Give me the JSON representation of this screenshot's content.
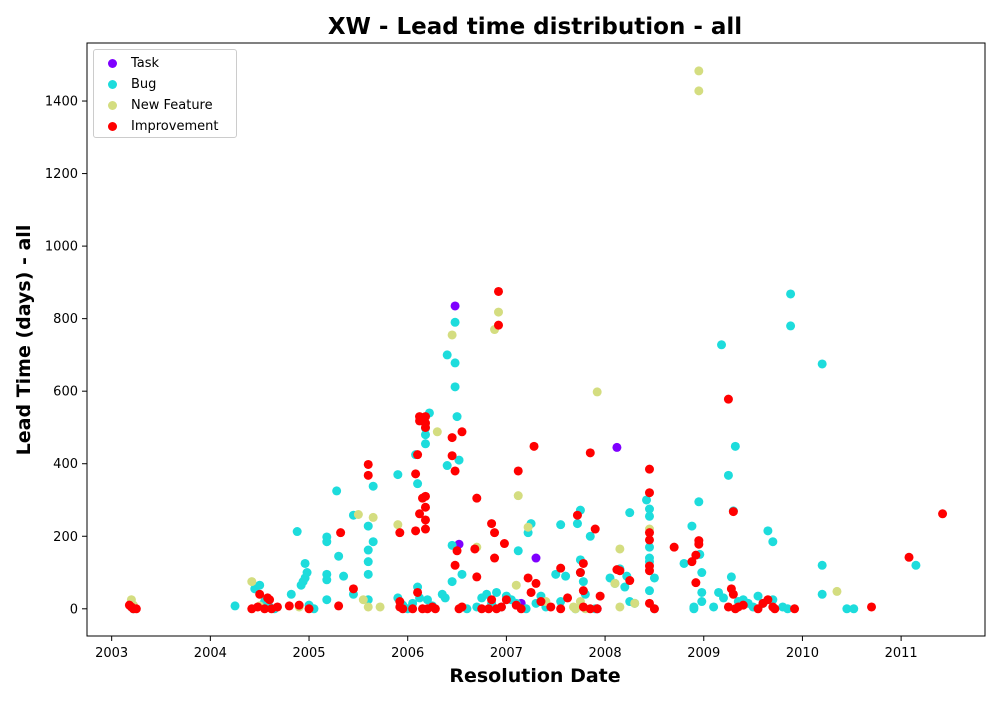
{
  "chart_data": {
    "type": "scatter",
    "title": "XW - Lead time distribution - all",
    "xlabel": "Resolution Date",
    "ylabel": "Lead Time (days) - all",
    "xlim": [
      2002.75,
      2011.85
    ],
    "ylim": [
      -75,
      1560
    ],
    "x_ticks": [
      2003,
      2004,
      2005,
      2006,
      2007,
      2008,
      2009,
      2010,
      2011
    ],
    "y_ticks": [
      0,
      200,
      400,
      600,
      800,
      1000,
      1200,
      1400
    ],
    "grid": false,
    "legend_position": "top-left",
    "series": [
      {
        "name": "Task",
        "color": "#7f00ff",
        "points": [
          [
            2006.48,
            835
          ],
          [
            2006.52,
            178
          ],
          [
            2007.3,
            140
          ],
          [
            2007.15,
            15
          ],
          [
            2008.12,
            445
          ],
          [
            2007.92,
            0
          ]
        ]
      },
      {
        "name": "Bug",
        "color": "#1ddcdc",
        "points": [
          [
            2004.25,
            8
          ],
          [
            2004.45,
            55
          ],
          [
            2004.5,
            65
          ],
          [
            2004.55,
            20
          ],
          [
            2004.6,
            5
          ],
          [
            2004.65,
            0
          ],
          [
            2004.82,
            40
          ],
          [
            2004.88,
            213
          ],
          [
            2004.92,
            65
          ],
          [
            2004.94,
            75
          ],
          [
            2004.96,
            85
          ],
          [
            2004.98,
            100
          ],
          [
            2004.96,
            125
          ],
          [
            2005.0,
            10
          ],
          [
            2005.05,
            0
          ],
          [
            2005.18,
            95
          ],
          [
            2005.18,
            80
          ],
          [
            2005.18,
            185
          ],
          [
            2005.18,
            198
          ],
          [
            2005.18,
            25
          ],
          [
            2005.28,
            325
          ],
          [
            2005.3,
            145
          ],
          [
            2005.35,
            90
          ],
          [
            2005.45,
            258
          ],
          [
            2005.45,
            40
          ],
          [
            2005.6,
            228
          ],
          [
            2005.6,
            162
          ],
          [
            2005.6,
            130
          ],
          [
            2005.6,
            95
          ],
          [
            2005.6,
            25
          ],
          [
            2005.65,
            338
          ],
          [
            2005.65,
            185
          ],
          [
            2005.9,
            370
          ],
          [
            2005.9,
            30
          ],
          [
            2005.95,
            10
          ],
          [
            2006.0,
            0
          ],
          [
            2006.05,
            15
          ],
          [
            2006.08,
            425
          ],
          [
            2006.1,
            345
          ],
          [
            2006.1,
            60
          ],
          [
            2006.12,
            30
          ],
          [
            2006.18,
            480
          ],
          [
            2006.18,
            455
          ],
          [
            2006.18,
            498
          ],
          [
            2006.2,
            25
          ],
          [
            2006.22,
            540
          ],
          [
            2006.25,
            8
          ],
          [
            2006.35,
            40
          ],
          [
            2006.38,
            30
          ],
          [
            2006.4,
            700
          ],
          [
            2006.4,
            395
          ],
          [
            2006.45,
            175
          ],
          [
            2006.45,
            75
          ],
          [
            2006.48,
            790
          ],
          [
            2006.48,
            678
          ],
          [
            2006.48,
            612
          ],
          [
            2006.5,
            530
          ],
          [
            2006.52,
            410
          ],
          [
            2006.55,
            95
          ],
          [
            2006.6,
            0
          ],
          [
            2006.7,
            5
          ],
          [
            2006.75,
            30
          ],
          [
            2006.8,
            40
          ],
          [
            2006.85,
            15
          ],
          [
            2006.9,
            45
          ],
          [
            2006.95,
            5
          ],
          [
            2007.0,
            35
          ],
          [
            2007.05,
            25
          ],
          [
            2007.1,
            15
          ],
          [
            2007.12,
            160
          ],
          [
            2007.2,
            0
          ],
          [
            2007.22,
            210
          ],
          [
            2007.25,
            235
          ],
          [
            2007.3,
            15
          ],
          [
            2007.35,
            35
          ],
          [
            2007.4,
            5
          ],
          [
            2007.5,
            95
          ],
          [
            2007.55,
            232
          ],
          [
            2007.55,
            20
          ],
          [
            2007.6,
            90
          ],
          [
            2007.7,
            0
          ],
          [
            2007.72,
            235
          ],
          [
            2007.75,
            272
          ],
          [
            2007.75,
            135
          ],
          [
            2007.75,
            100
          ],
          [
            2007.78,
            75
          ],
          [
            2007.8,
            40
          ],
          [
            2007.85,
            200
          ],
          [
            2007.9,
            0
          ],
          [
            2008.05,
            85
          ],
          [
            2008.1,
            70
          ],
          [
            2008.15,
            110
          ],
          [
            2008.2,
            60
          ],
          [
            2008.22,
            90
          ],
          [
            2008.25,
            265
          ],
          [
            2008.25,
            20
          ],
          [
            2008.3,
            15
          ],
          [
            2008.42,
            300
          ],
          [
            2008.45,
            275
          ],
          [
            2008.45,
            255
          ],
          [
            2008.45,
            170
          ],
          [
            2008.45,
            140
          ],
          [
            2008.45,
            130
          ],
          [
            2008.45,
            50
          ],
          [
            2008.5,
            85
          ],
          [
            2008.5,
            0
          ],
          [
            2008.8,
            125
          ],
          [
            2008.88,
            228
          ],
          [
            2008.9,
            5
          ],
          [
            2008.9,
            0
          ],
          [
            2008.95,
            295
          ],
          [
            2008.96,
            150
          ],
          [
            2008.98,
            100
          ],
          [
            2008.98,
            45
          ],
          [
            2008.98,
            20
          ],
          [
            2009.1,
            5
          ],
          [
            2009.15,
            45
          ],
          [
            2009.18,
            728
          ],
          [
            2009.2,
            30
          ],
          [
            2009.25,
            368
          ],
          [
            2009.28,
            88
          ],
          [
            2009.3,
            270
          ],
          [
            2009.32,
            448
          ],
          [
            2009.35,
            20
          ],
          [
            2009.4,
            25
          ],
          [
            2009.45,
            15
          ],
          [
            2009.5,
            5
          ],
          [
            2009.55,
            35
          ],
          [
            2009.6,
            15
          ],
          [
            2009.65,
            215
          ],
          [
            2009.7,
            185
          ],
          [
            2009.7,
            25
          ],
          [
            2009.8,
            5
          ],
          [
            2009.85,
            0
          ],
          [
            2009.88,
            868
          ],
          [
            2009.88,
            780
          ],
          [
            2010.2,
            675
          ],
          [
            2010.2,
            120
          ],
          [
            2010.2,
            40
          ],
          [
            2010.45,
            0
          ],
          [
            2010.52,
            0
          ],
          [
            2011.15,
            120
          ],
          [
            2003.2,
            5
          ],
          [
            2003.22,
            0
          ]
        ]
      },
      {
        "name": "New Feature",
        "color": "#d4dd80",
        "points": [
          [
            2003.2,
            25
          ],
          [
            2003.22,
            10
          ],
          [
            2004.42,
            75
          ],
          [
            2004.5,
            8
          ],
          [
            2004.9,
            5
          ],
          [
            2005.5,
            260
          ],
          [
            2005.55,
            25
          ],
          [
            2005.6,
            5
          ],
          [
            2005.65,
            252
          ],
          [
            2005.72,
            5
          ],
          [
            2005.9,
            232
          ],
          [
            2006.3,
            488
          ],
          [
            2006.45,
            755
          ],
          [
            2006.55,
            5
          ],
          [
            2006.7,
            170
          ],
          [
            2006.88,
            770
          ],
          [
            2006.92,
            818
          ],
          [
            2007.1,
            65
          ],
          [
            2007.12,
            312
          ],
          [
            2007.22,
            225
          ],
          [
            2007.4,
            20
          ],
          [
            2007.68,
            5
          ],
          [
            2007.7,
            0
          ],
          [
            2007.75,
            20
          ],
          [
            2007.8,
            0
          ],
          [
            2007.92,
            598
          ],
          [
            2008.1,
            70
          ],
          [
            2008.15,
            165
          ],
          [
            2008.15,
            5
          ],
          [
            2008.45,
            220
          ],
          [
            2008.95,
            1483
          ],
          [
            2008.95,
            1428
          ],
          [
            2010.35,
            48
          ],
          [
            2008.3,
            15
          ]
        ]
      },
      {
        "name": "Improvement",
        "color": "#ff0000",
        "points": [
          [
            2003.18,
            10
          ],
          [
            2003.2,
            5
          ],
          [
            2003.22,
            0
          ],
          [
            2003.25,
            0
          ],
          [
            2004.42,
            0
          ],
          [
            2004.48,
            5
          ],
          [
            2004.5,
            40
          ],
          [
            2004.55,
            0
          ],
          [
            2004.58,
            30
          ],
          [
            2004.6,
            25
          ],
          [
            2004.62,
            0
          ],
          [
            2004.68,
            5
          ],
          [
            2004.8,
            8
          ],
          [
            2004.9,
            10
          ],
          [
            2005.0,
            0
          ],
          [
            2005.3,
            8
          ],
          [
            2005.32,
            210
          ],
          [
            2005.45,
            55
          ],
          [
            2005.6,
            398
          ],
          [
            2005.6,
            368
          ],
          [
            2005.92,
            210
          ],
          [
            2005.92,
            20
          ],
          [
            2005.92,
            5
          ],
          [
            2005.95,
            0
          ],
          [
            2006.05,
            0
          ],
          [
            2006.08,
            372
          ],
          [
            2006.08,
            215
          ],
          [
            2006.1,
            425
          ],
          [
            2006.1,
            45
          ],
          [
            2006.12,
            530
          ],
          [
            2006.12,
            518
          ],
          [
            2006.12,
            262
          ],
          [
            2006.15,
            305
          ],
          [
            2006.15,
            0
          ],
          [
            2006.18,
            530
          ],
          [
            2006.18,
            512
          ],
          [
            2006.18,
            500
          ],
          [
            2006.18,
            310
          ],
          [
            2006.18,
            280
          ],
          [
            2006.18,
            245
          ],
          [
            2006.18,
            220
          ],
          [
            2006.2,
            0
          ],
          [
            2006.25,
            5
          ],
          [
            2006.28,
            0
          ],
          [
            2006.45,
            472
          ],
          [
            2006.45,
            422
          ],
          [
            2006.48,
            380
          ],
          [
            2006.48,
            120
          ],
          [
            2006.5,
            160
          ],
          [
            2006.55,
            488
          ],
          [
            2006.52,
            0
          ],
          [
            2006.55,
            5
          ],
          [
            2006.68,
            165
          ],
          [
            2006.7,
            305
          ],
          [
            2006.7,
            88
          ],
          [
            2006.75,
            0
          ],
          [
            2006.82,
            0
          ],
          [
            2006.85,
            235
          ],
          [
            2006.85,
            25
          ],
          [
            2006.88,
            210
          ],
          [
            2006.88,
            140
          ],
          [
            2006.9,
            0
          ],
          [
            2006.92,
            875
          ],
          [
            2006.92,
            782
          ],
          [
            2006.95,
            5
          ],
          [
            2006.98,
            180
          ],
          [
            2007.0,
            25
          ],
          [
            2007.1,
            10
          ],
          [
            2007.12,
            380
          ],
          [
            2007.15,
            0
          ],
          [
            2007.22,
            85
          ],
          [
            2007.25,
            45
          ],
          [
            2007.28,
            448
          ],
          [
            2007.3,
            70
          ],
          [
            2007.35,
            20
          ],
          [
            2007.45,
            5
          ],
          [
            2007.55,
            112
          ],
          [
            2007.55,
            0
          ],
          [
            2007.62,
            30
          ],
          [
            2007.72,
            258
          ],
          [
            2007.75,
            100
          ],
          [
            2007.78,
            125
          ],
          [
            2007.78,
            50
          ],
          [
            2007.78,
            5
          ],
          [
            2007.85,
            430
          ],
          [
            2007.85,
            0
          ],
          [
            2007.9,
            220
          ],
          [
            2007.92,
            0
          ],
          [
            2007.95,
            35
          ],
          [
            2008.12,
            108
          ],
          [
            2008.15,
            105
          ],
          [
            2008.25,
            78
          ],
          [
            2008.45,
            385
          ],
          [
            2008.45,
            320
          ],
          [
            2008.45,
            210
          ],
          [
            2008.45,
            190
          ],
          [
            2008.45,
            118
          ],
          [
            2008.45,
            105
          ],
          [
            2008.45,
            15
          ],
          [
            2008.5,
            0
          ],
          [
            2008.7,
            170
          ],
          [
            2008.88,
            130
          ],
          [
            2008.92,
            148
          ],
          [
            2008.92,
            72
          ],
          [
            2008.95,
            188
          ],
          [
            2008.95,
            178
          ],
          [
            2009.25,
            578
          ],
          [
            2009.25,
            5
          ],
          [
            2009.28,
            55
          ],
          [
            2009.3,
            268
          ],
          [
            2009.3,
            40
          ],
          [
            2009.32,
            0
          ],
          [
            2009.35,
            5
          ],
          [
            2009.4,
            10
          ],
          [
            2009.55,
            0
          ],
          [
            2009.6,
            15
          ],
          [
            2009.65,
            25
          ],
          [
            2009.7,
            5
          ],
          [
            2009.72,
            0
          ],
          [
            2009.92,
            0
          ],
          [
            2010.7,
            5
          ],
          [
            2011.08,
            142
          ],
          [
            2011.42,
            262
          ]
        ]
      }
    ]
  }
}
